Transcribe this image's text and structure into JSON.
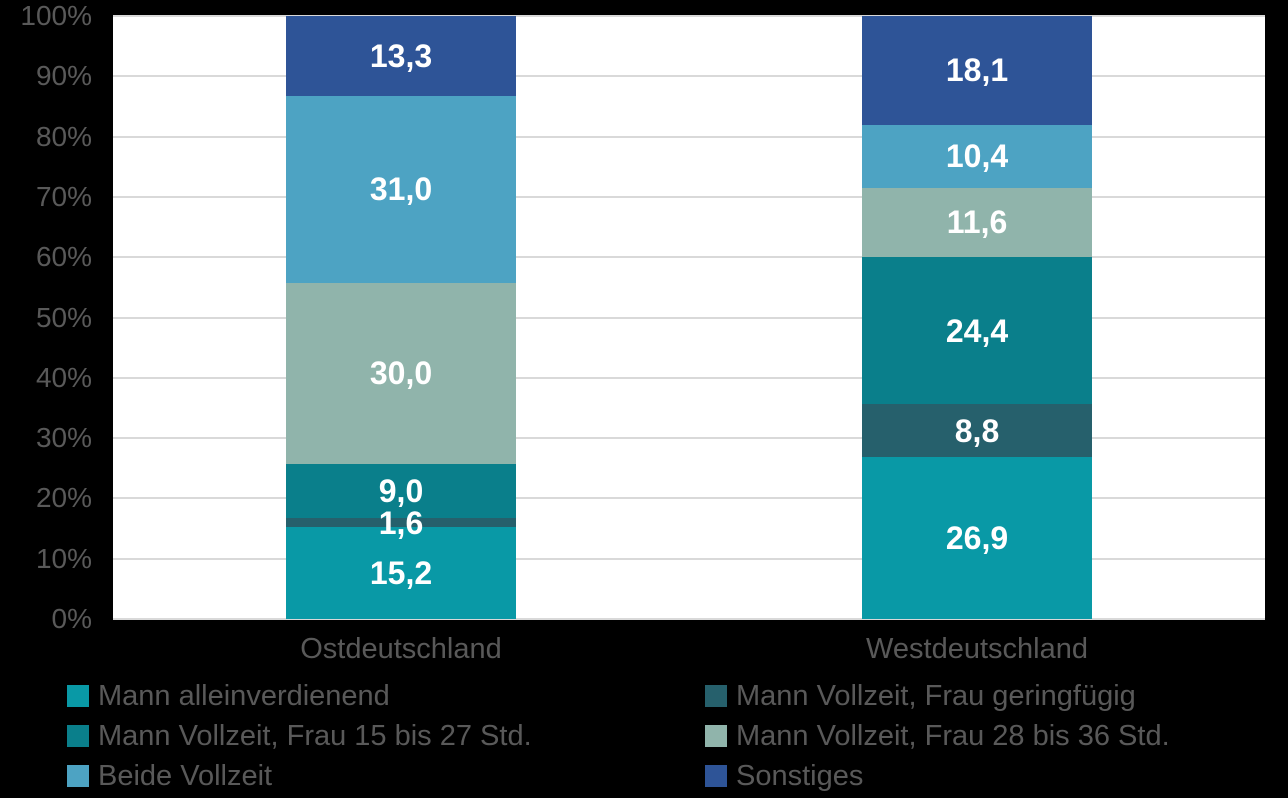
{
  "colors": {
    "background": "#000000",
    "plot_background": "#FFFFFF",
    "gridline": "#D9D9D9",
    "axis_text": "#595959",
    "bar_label_text": "#FFFFFF"
  },
  "chart_data": {
    "type": "bar",
    "subtype": "stacked-100",
    "title": "",
    "xlabel": "",
    "ylabel": "",
    "categories": [
      "Ostdeutschland",
      "Westdeutschland"
    ],
    "series": [
      {
        "name": "Mann alleinverdienend",
        "color": "#0999A6",
        "values": [
          15.2,
          26.9
        ]
      },
      {
        "name": "Mann Vollzeit, Frau geringfügig",
        "color": "#26606C",
        "values": [
          1.6,
          8.8
        ]
      },
      {
        "name": "Mann Vollzeit, Frau 15 bis 27 Std.",
        "color": "#0A7F8B",
        "values": [
          9.0,
          24.4
        ]
      },
      {
        "name": "Mann Vollzeit, Frau 28 bis 36 Std.",
        "color": "#90B4AB",
        "values": [
          30.0,
          11.6
        ]
      },
      {
        "name": "Beide Vollzeit",
        "color": "#4DA3C3",
        "values": [
          31.0,
          10.4
        ]
      },
      {
        "name": "Sonstiges",
        "color": "#2E5497",
        "values": [
          13.3,
          18.1
        ]
      }
    ],
    "value_labels": [
      [
        "15,2",
        "1,6",
        "9,0",
        "30,0",
        "31,0",
        "13,3"
      ],
      [
        "26,9",
        "8,8",
        "24,4",
        "11,6",
        "10,4",
        "18,1"
      ]
    ],
    "y_ticks": [
      "0%",
      "10%",
      "20%",
      "30%",
      "40%",
      "50%",
      "60%",
      "70%",
      "80%",
      "90%",
      "100%"
    ],
    "ylim": [
      0,
      100
    ],
    "grid": true,
    "legend_position": "bottom",
    "legend_columns": 2,
    "legend_order": [
      0,
      1,
      2,
      3,
      4,
      5
    ]
  }
}
